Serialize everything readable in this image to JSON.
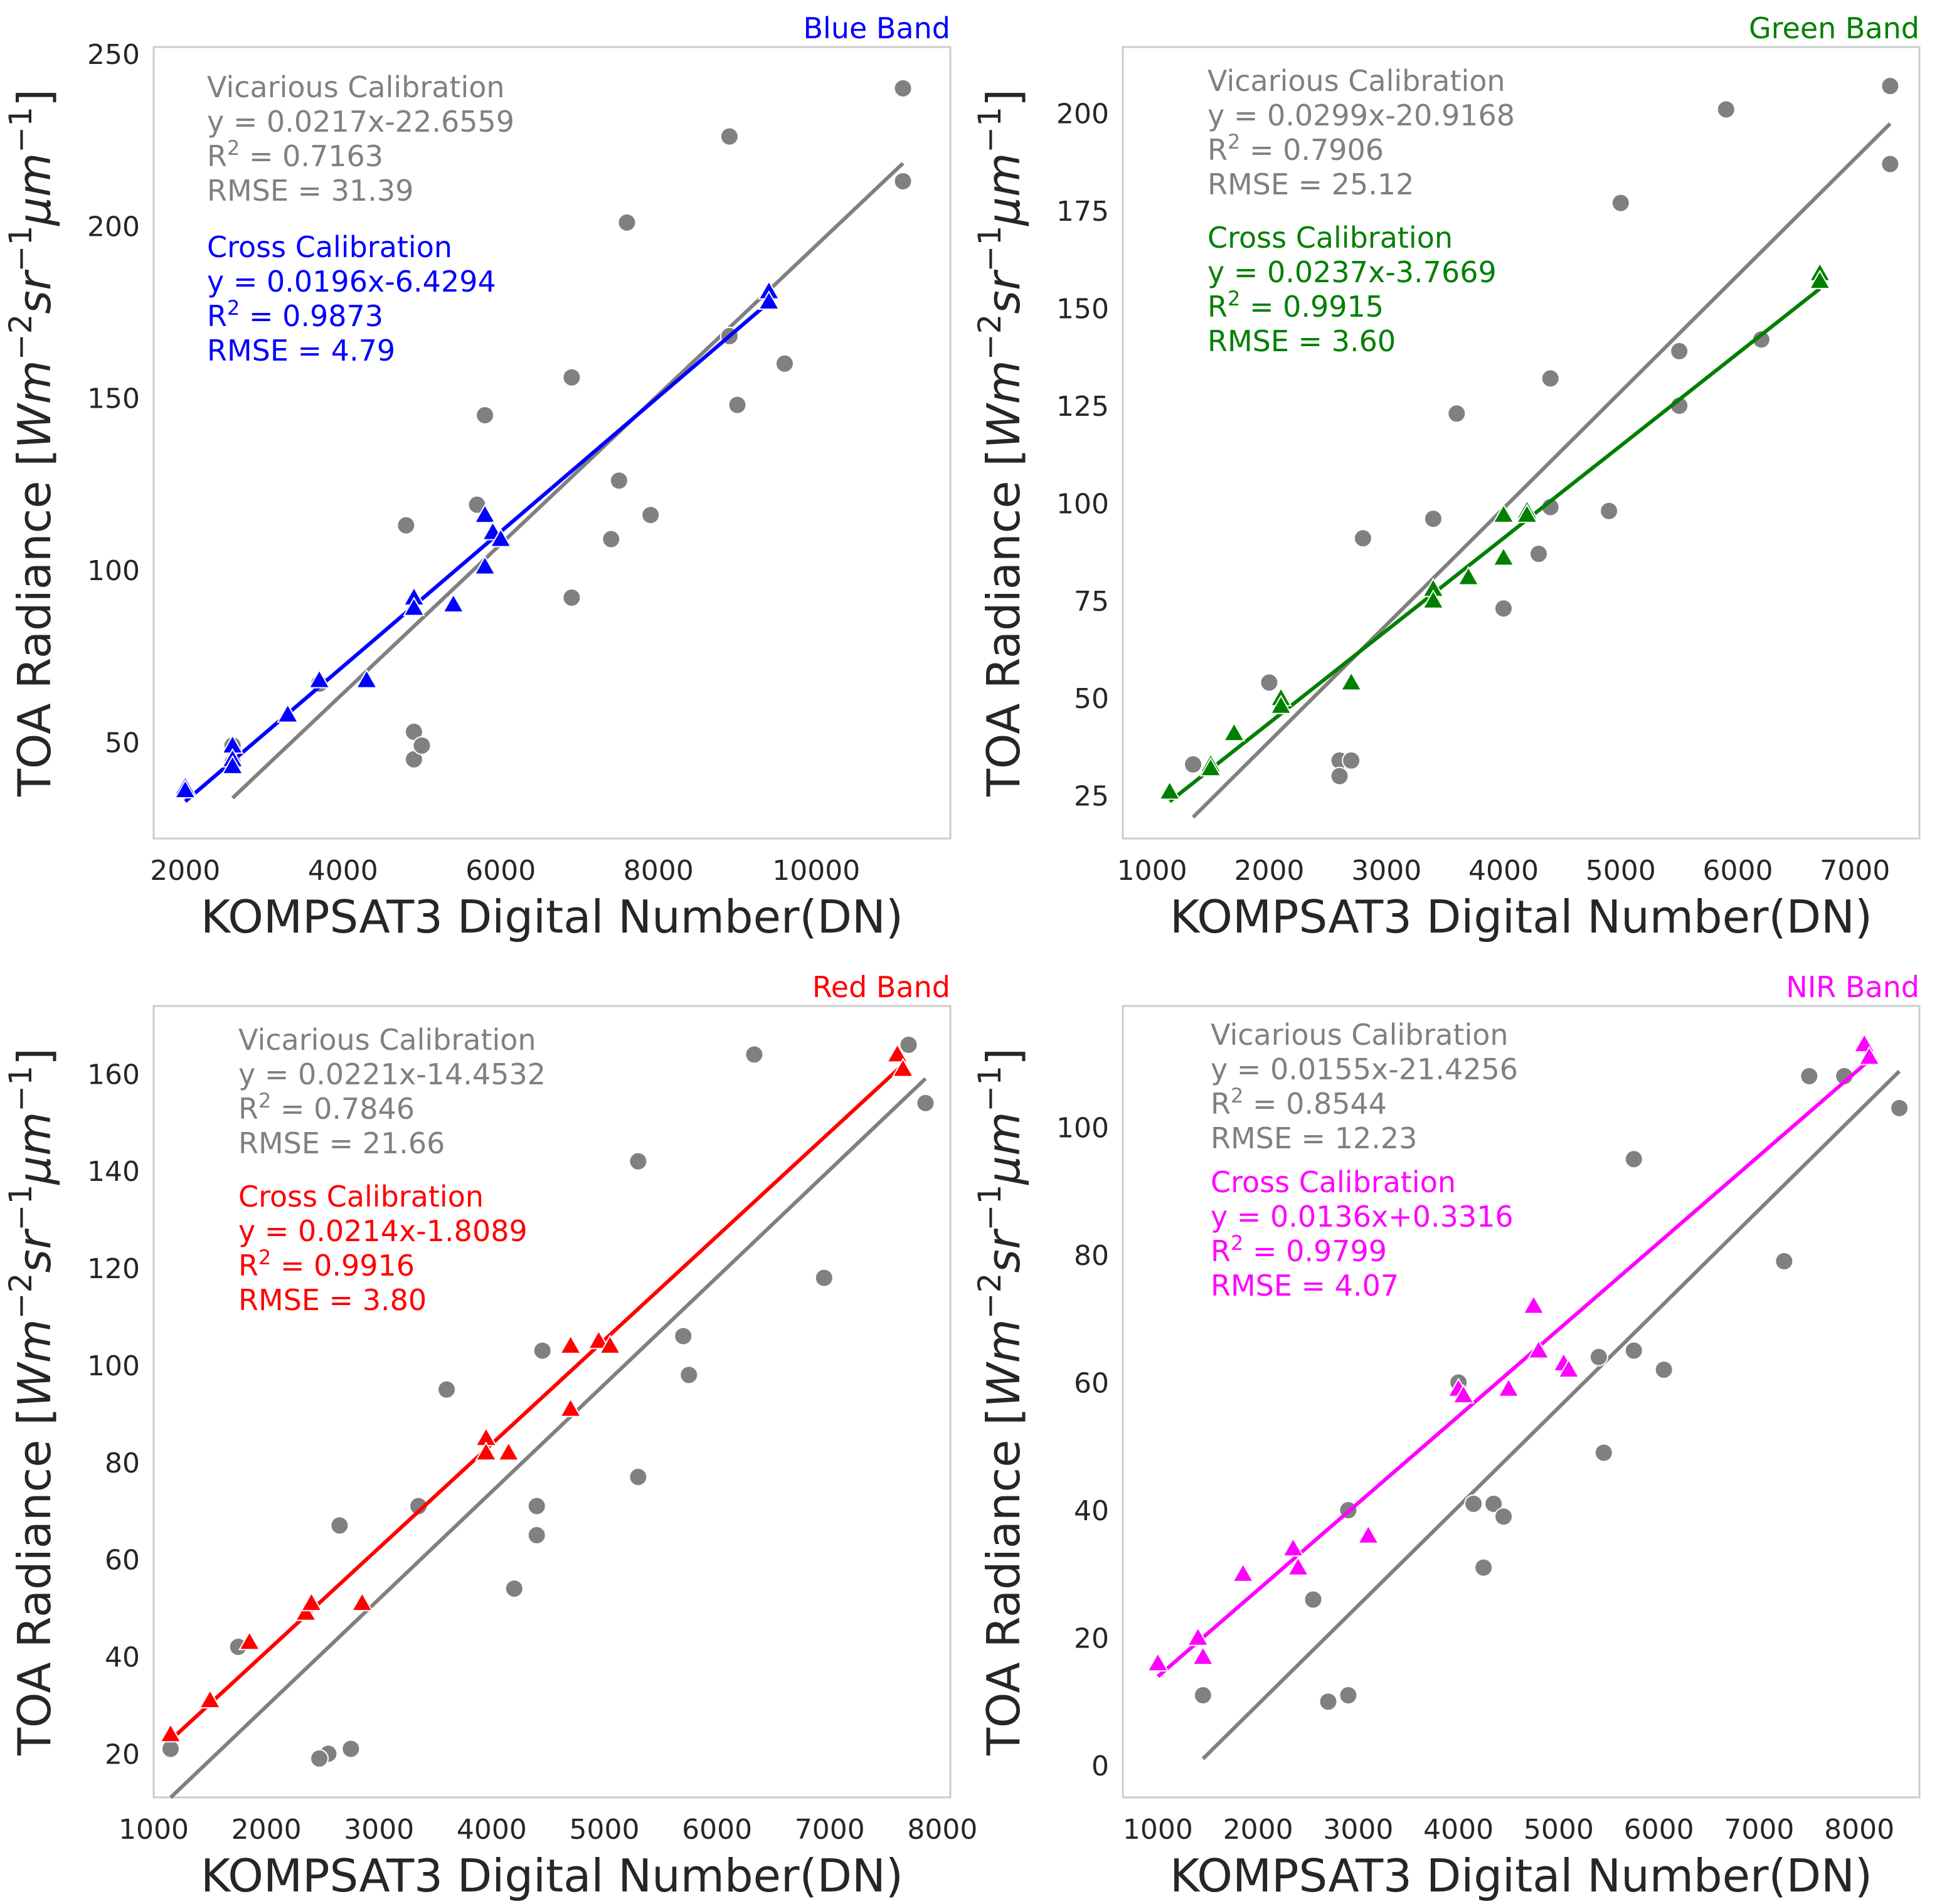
{
  "figure": {
    "x_label": "KOMPSAT3 Digital Number(DN)",
    "y_label_prefix": "TOA Radiance [",
    "y_label_unit_parts": [
      "W",
      "m",
      "−2",
      "sr",
      "−1",
      "μm",
      "−1"
    ],
    "y_label_suffix": "]"
  },
  "chart_data": [
    {
      "type": "scatter",
      "title": "Blue Band",
      "title_color": "#0000ff",
      "xlabel": "KOMPSAT3 Digital Number(DN)",
      "ylabel": "TOA Radiance [Wm^-2 sr^-1 μm^-1]",
      "xlim": [
        1600,
        11700
      ],
      "ylim": [
        22,
        252
      ],
      "xticks": [
        2000,
        4000,
        6000,
        8000,
        10000
      ],
      "yticks": [
        50,
        100,
        150,
        200,
        250
      ],
      "grid": false,
      "vicarious": {
        "name": "Vicarious Calibration",
        "equation": "y = 0.0217x-22.6559",
        "r2_label": "R",
        "r2_value": " = 0.7163",
        "rmse": "RMSE = 31.39",
        "color": "#808080",
        "slope": 0.0217,
        "intercept": -22.6559,
        "x_range": [
          2600,
          11100
        ],
        "points": [
          [
            11100,
            240
          ],
          [
            11100,
            213
          ],
          [
            8900,
            226
          ],
          [
            8900,
            168
          ],
          [
            9000,
            148
          ],
          [
            9600,
            160
          ],
          [
            7600,
            201
          ],
          [
            7500,
            126
          ],
          [
            7400,
            109
          ],
          [
            7900,
            116
          ],
          [
            6900,
            156
          ],
          [
            6900,
            92
          ],
          [
            5800,
            145
          ],
          [
            5700,
            119
          ],
          [
            4800,
            113
          ],
          [
            4900,
            53
          ],
          [
            4900,
            45
          ],
          [
            5000,
            49
          ],
          [
            3700,
            67
          ],
          [
            2600,
            49
          ],
          [
            2600,
            44
          ]
        ]
      },
      "cross": {
        "name": "Cross Calibration",
        "equation": "y = 0.0196x-6.4294",
        "r2_label": "R",
        "r2_value": " = 0.9873",
        "rmse": "RMSE = 4.79",
        "color": "#0000ff",
        "slope": 0.0196,
        "intercept": -6.4294,
        "x_range": [
          2000,
          9400
        ],
        "points": [
          [
            2000,
            37
          ],
          [
            2000,
            36
          ],
          [
            2600,
            49
          ],
          [
            2600,
            45
          ],
          [
            2600,
            43
          ],
          [
            3300,
            58
          ],
          [
            3700,
            68
          ],
          [
            4300,
            68
          ],
          [
            4900,
            92
          ],
          [
            4900,
            89
          ],
          [
            5400,
            90
          ],
          [
            5800,
            116
          ],
          [
            5800,
            101
          ],
          [
            5900,
            111
          ],
          [
            6000,
            109
          ],
          [
            9400,
            181
          ],
          [
            9400,
            178
          ]
        ]
      }
    },
    {
      "type": "scatter",
      "title": "Green Band",
      "title_color": "#008000",
      "xlabel": "KOMPSAT3 Digital Number(DN)",
      "ylabel": "TOA Radiance [Wm^-2 sr^-1 μm^-1]",
      "xlim": [
        750,
        7550
      ],
      "ylim": [
        14,
        217
      ],
      "xticks": [
        1000,
        2000,
        3000,
        4000,
        5000,
        6000,
        7000
      ],
      "yticks": [
        25,
        50,
        75,
        100,
        125,
        150,
        175,
        200
      ],
      "grid": false,
      "vicarious": {
        "name": "Vicarious Calibration",
        "equation": "y = 0.0299x-20.9168",
        "r2_label": "R",
        "r2_value": " = 0.7906",
        "rmse": "RMSE = 25.12",
        "color": "#808080",
        "slope": 0.0299,
        "intercept": -20.9168,
        "x_range": [
          1350,
          7300
        ],
        "points": [
          [
            7300,
            207
          ],
          [
            7300,
            187
          ],
          [
            5900,
            201
          ],
          [
            5000,
            177
          ],
          [
            5500,
            139
          ],
          [
            5500,
            125
          ],
          [
            6200,
            142
          ],
          [
            4400,
            132
          ],
          [
            4900,
            98
          ],
          [
            4400,
            99
          ],
          [
            4300,
            87
          ],
          [
            4000,
            73
          ],
          [
            3400,
            96
          ],
          [
            3600,
            123
          ],
          [
            2800,
            91
          ],
          [
            2000,
            54
          ],
          [
            1350,
            33
          ],
          [
            2600,
            34
          ],
          [
            2700,
            34
          ],
          [
            2600,
            30
          ]
        ]
      },
      "cross": {
        "name": "Cross Calibration",
        "equation": "y = 0.0237x-3.7669",
        "r2_label": "R",
        "r2_value": " = 0.9915",
        "rmse": "RMSE = 3.60",
        "color": "#008000",
        "slope": 0.0237,
        "intercept": -3.7669,
        "x_range": [
          1150,
          6700
        ],
        "points": [
          [
            1150,
            26
          ],
          [
            1500,
            33
          ],
          [
            1500,
            32
          ],
          [
            1700,
            41
          ],
          [
            2100,
            50
          ],
          [
            2100,
            48
          ],
          [
            2700,
            54
          ],
          [
            3400,
            78
          ],
          [
            3400,
            75
          ],
          [
            3700,
            81
          ],
          [
            4000,
            97
          ],
          [
            4000,
            86
          ],
          [
            4200,
            98
          ],
          [
            4200,
            97
          ],
          [
            6700,
            159
          ],
          [
            6700,
            157
          ]
        ]
      }
    },
    {
      "type": "scatter",
      "title": "Red Band",
      "title_color": "#ff0000",
      "xlabel": "KOMPSAT3 Digital Number(DN)",
      "ylabel": "TOA Radiance [Wm^-2 sr^-1 μm^-1]",
      "xlim": [
        1000,
        8070
      ],
      "ylim": [
        11,
        174
      ],
      "xticks": [
        1000,
        2000,
        3000,
        4000,
        5000,
        6000,
        7000,
        8000
      ],
      "yticks": [
        20,
        40,
        60,
        80,
        100,
        120,
        140,
        160
      ],
      "grid": false,
      "vicarious": {
        "name": "Vicarious Calibration",
        "equation": "y = 0.0221x-14.4532",
        "r2_label": "R",
        "r2_value": " = 0.7846",
        "rmse": "RMSE = 21.66",
        "color": "#808080",
        "slope": 0.0221,
        "intercept": -14.4532,
        "x_range": [
          1150,
          7850
        ],
        "points": [
          [
            7700,
            166
          ],
          [
            7850,
            154
          ],
          [
            6330,
            164
          ],
          [
            5300,
            142
          ],
          [
            6950,
            118
          ],
          [
            5700,
            106
          ],
          [
            5750,
            98
          ],
          [
            5300,
            77
          ],
          [
            4450,
            103
          ],
          [
            4400,
            71
          ],
          [
            4400,
            65
          ],
          [
            4200,
            54
          ],
          [
            3600,
            95
          ],
          [
            3350,
            71
          ],
          [
            2650,
            67
          ],
          [
            1750,
            42
          ],
          [
            1150,
            21
          ],
          [
            2750,
            21
          ],
          [
            2550,
            20
          ],
          [
            2470,
            19
          ]
        ]
      },
      "cross": {
        "name": "Cross Calibration",
        "equation": "y = 0.0214x-1.8089",
        "r2_label": "R",
        "r2_value": " = 0.9916",
        "rmse": "RMSE = 3.80",
        "color": "#ff0000",
        "slope": 0.0214,
        "intercept": -1.8089,
        "x_range": [
          1150,
          7650
        ],
        "points": [
          [
            1150,
            24
          ],
          [
            1500,
            31
          ],
          [
            1850,
            43
          ],
          [
            2350,
            49
          ],
          [
            2400,
            51
          ],
          [
            2850,
            51
          ],
          [
            3950,
            85
          ],
          [
            3950,
            82
          ],
          [
            4150,
            82
          ],
          [
            4700,
            104
          ],
          [
            4700,
            91
          ],
          [
            4950,
            105
          ],
          [
            5050,
            104
          ],
          [
            7600,
            164
          ],
          [
            7650,
            161
          ]
        ]
      }
    },
    {
      "type": "scatter",
      "title": "NIR Band",
      "title_color": "#ff00ff",
      "xlabel": "KOMPSAT3 Digital Number(DN)",
      "ylabel": "TOA Radiance [Wm^-2 sr^-1 μm^-1]",
      "xlim": [
        650,
        8600
      ],
      "ylim": [
        -5,
        119
      ],
      "xticks": [
        1000,
        2000,
        3000,
        4000,
        5000,
        6000,
        7000,
        8000
      ],
      "yticks": [
        0,
        20,
        40,
        60,
        80,
        100
      ],
      "grid": false,
      "vicarious": {
        "name": "Vicarious Calibration",
        "equation": "y = 0.0155x-21.4256",
        "r2_label": "R",
        "r2_value": " = 0.8544",
        "rmse": "RMSE = 12.23",
        "color": "#808080",
        "slope": 0.0155,
        "intercept": -21.4256,
        "x_range": [
          1450,
          8400
        ],
        "points": [
          [
            7500,
            108
          ],
          [
            7850,
            108
          ],
          [
            8400,
            103
          ],
          [
            7250,
            79
          ],
          [
            5750,
            95
          ],
          [
            5750,
            65
          ],
          [
            6050,
            62
          ],
          [
            5400,
            64
          ],
          [
            5450,
            49
          ],
          [
            4000,
            60
          ],
          [
            4150,
            41
          ],
          [
            4350,
            41
          ],
          [
            4450,
            39
          ],
          [
            4250,
            31
          ],
          [
            2900,
            40
          ],
          [
            2550,
            26
          ],
          [
            1450,
            11
          ],
          [
            2700,
            10
          ],
          [
            2700,
            10
          ],
          [
            2900,
            11
          ]
        ]
      },
      "cross": {
        "name": "Cross Calibration",
        "equation": "y = 0.0136x+0.3316",
        "r2_label": "R",
        "r2_value": " = 0.9799",
        "rmse": "RMSE = 4.07",
        "color": "#ff00ff",
        "slope": 0.0136,
        "intercept": 0.3316,
        "x_range": [
          1000,
          8100
        ],
        "points": [
          [
            1000,
            16
          ],
          [
            1400,
            20
          ],
          [
            1450,
            17
          ],
          [
            1850,
            30
          ],
          [
            2350,
            34
          ],
          [
            2400,
            31
          ],
          [
            3100,
            36
          ],
          [
            4000,
            59
          ],
          [
            4050,
            58
          ],
          [
            4500,
            59
          ],
          [
            4750,
            72
          ],
          [
            4800,
            65
          ],
          [
            5050,
            63
          ],
          [
            5100,
            62
          ],
          [
            8050,
            113
          ],
          [
            8100,
            111
          ]
        ]
      }
    }
  ]
}
